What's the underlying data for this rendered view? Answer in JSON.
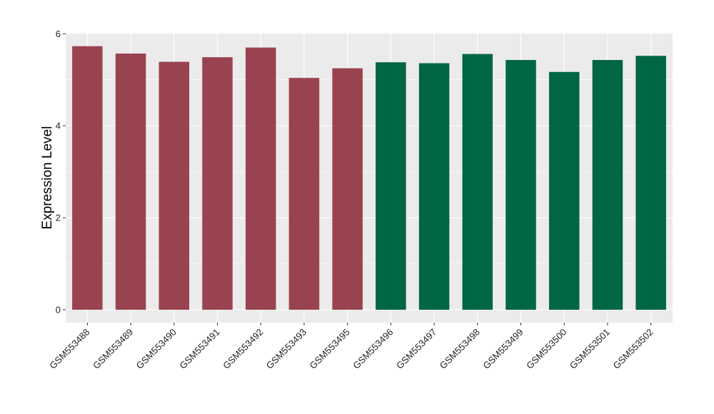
{
  "chart_data": {
    "type": "bar",
    "title": "",
    "xlabel": "",
    "ylabel": "Expression Level",
    "ylim": [
      -0.28,
      6.02
    ],
    "yticks": [
      0,
      2,
      4,
      6
    ],
    "grid": true,
    "legend": "none",
    "categories": [
      "GSM553488",
      "GSM553489",
      "GSM553490",
      "GSM553491",
      "GSM553492",
      "GSM553493",
      "GSM553495",
      "GSM553496",
      "GSM553497",
      "GSM553498",
      "GSM553499",
      "GSM553500",
      "GSM553501",
      "GSM553502"
    ],
    "values": [
      5.73,
      5.57,
      5.39,
      5.49,
      5.7,
      5.04,
      5.25,
      5.38,
      5.36,
      5.56,
      5.43,
      5.17,
      5.43,
      5.52
    ],
    "bar_colors": [
      "#9a4350",
      "#9a4350",
      "#9a4350",
      "#9a4350",
      "#9a4350",
      "#9a4350",
      "#9a4350",
      "#006644",
      "#006644",
      "#006644",
      "#006644",
      "#006644",
      "#006644",
      "#006644"
    ],
    "panel_background": "#ebebeb",
    "grid_color": "#ffffff"
  }
}
